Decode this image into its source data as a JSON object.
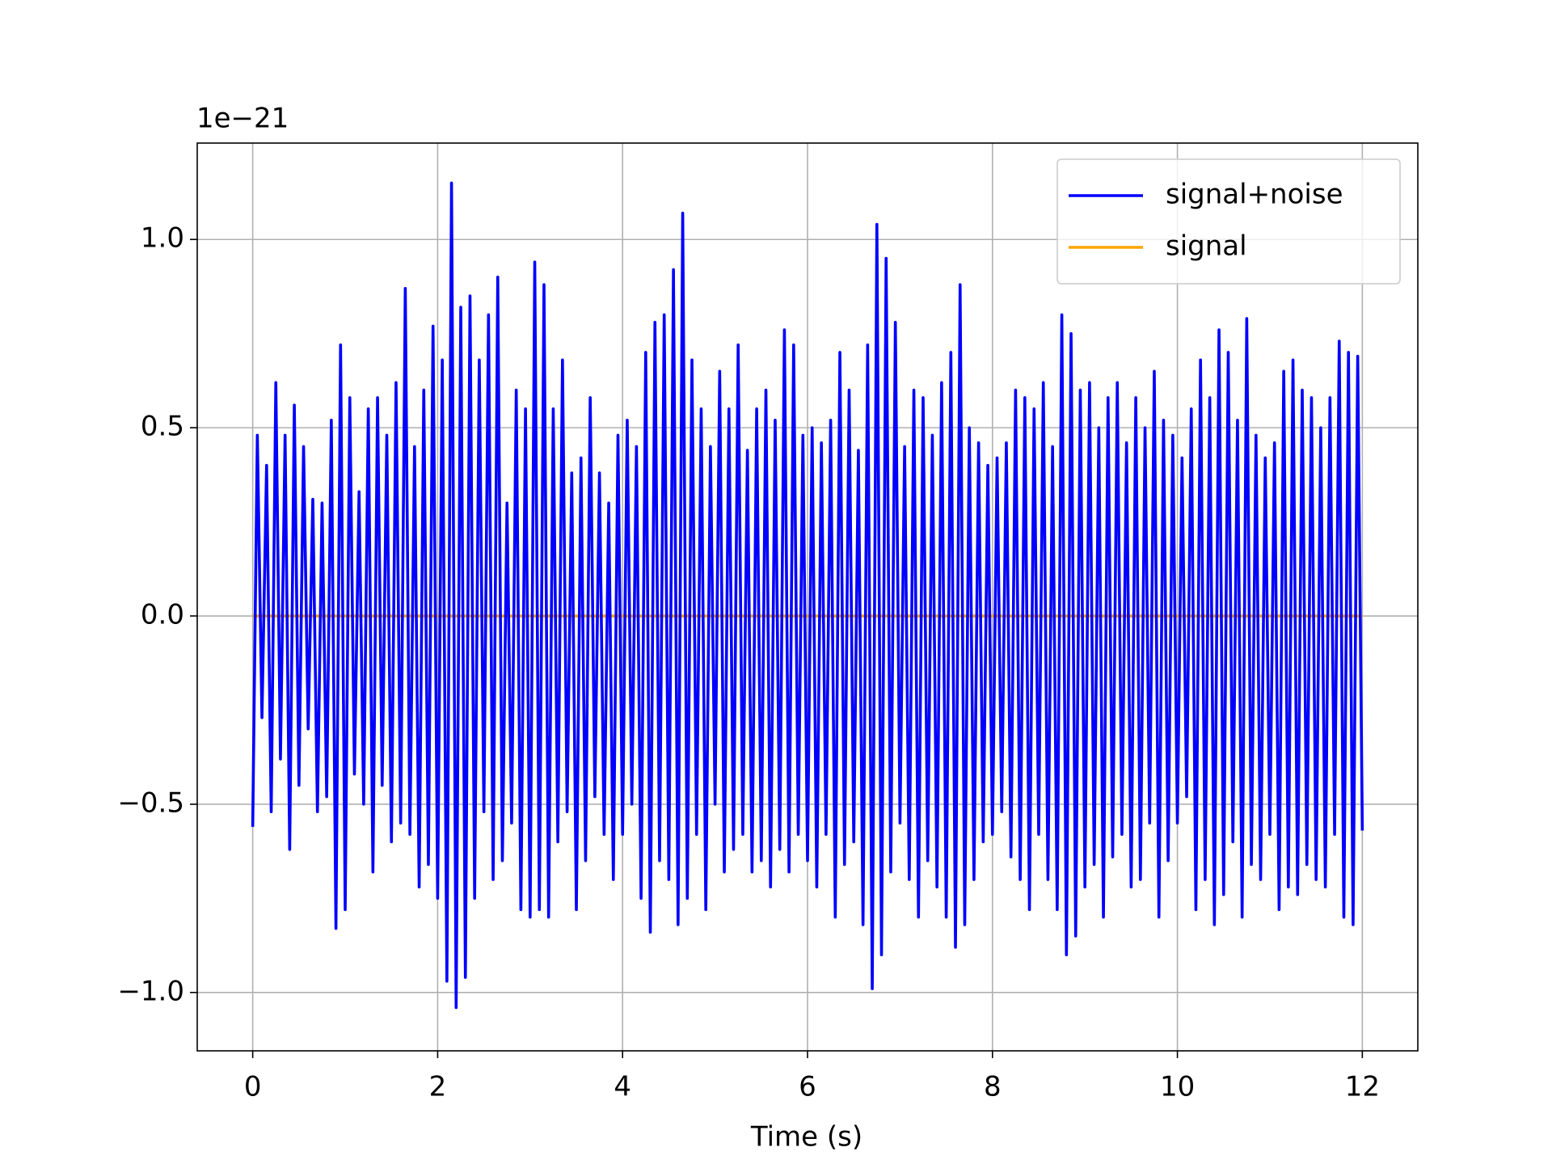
{
  "chart_data": {
    "type": "line",
    "x_label": "Time (s)",
    "y_offset_label": "1e−21",
    "x": [
      0,
      0.05,
      0.1,
      0.15,
      0.2,
      0.25,
      0.3,
      0.35,
      0.4,
      0.45,
      0.5,
      0.55,
      0.6,
      0.65,
      0.7,
      0.75,
      0.8,
      0.85,
      0.9,
      0.95,
      1,
      1.05,
      1.1,
      1.15,
      1.2,
      1.25,
      1.3,
      1.35,
      1.4,
      1.45,
      1.5,
      1.55,
      1.6,
      1.65,
      1.7,
      1.75,
      1.8,
      1.85,
      1.9,
      1.95,
      2,
      2.05,
      2.1,
      2.15,
      2.2,
      2.25,
      2.3,
      2.35,
      2.4,
      2.45,
      2.5,
      2.55,
      2.6,
      2.65,
      2.7,
      2.75,
      2.8,
      2.85,
      2.9,
      2.95,
      3,
      3.05,
      3.1,
      3.15,
      3.2,
      3.25,
      3.3,
      3.35,
      3.4,
      3.45,
      3.5,
      3.55,
      3.6,
      3.65,
      3.7,
      3.75,
      3.8,
      3.85,
      3.9,
      3.95,
      4,
      4.05,
      4.1,
      4.15,
      4.2,
      4.25,
      4.3,
      4.35,
      4.4,
      4.45,
      4.5,
      4.55,
      4.6,
      4.65,
      4.7,
      4.75,
      4.8,
      4.85,
      4.9,
      4.95,
      5,
      5.05,
      5.1,
      5.15,
      5.2,
      5.25,
      5.3,
      5.35,
      5.4,
      5.45,
      5.5,
      5.55,
      5.6,
      5.65,
      5.7,
      5.75,
      5.8,
      5.85,
      5.9,
      5.95,
      6,
      6.05,
      6.1,
      6.15,
      6.2,
      6.25,
      6.3,
      6.35,
      6.4,
      6.45,
      6.5,
      6.55,
      6.6,
      6.65,
      6.7,
      6.75,
      6.8,
      6.85,
      6.9,
      6.95,
      7,
      7.05,
      7.1,
      7.15,
      7.2,
      7.25,
      7.3,
      7.35,
      7.4,
      7.45,
      7.5,
      7.55,
      7.6,
      7.65,
      7.7,
      7.75,
      7.8,
      7.85,
      7.9,
      7.95,
      8,
      8.05,
      8.1,
      8.15,
      8.2,
      8.25,
      8.3,
      8.35,
      8.4,
      8.45,
      8.5,
      8.55,
      8.6,
      8.65,
      8.7,
      8.75,
      8.8,
      8.85,
      8.9,
      8.95,
      9,
      9.05,
      9.1,
      9.15,
      9.2,
      9.25,
      9.3,
      9.35,
      9.4,
      9.45,
      9.5,
      9.55,
      9.6,
      9.65,
      9.7,
      9.75,
      9.8,
      9.85,
      9.9,
      9.95,
      10,
      10.05,
      10.1,
      10.15,
      10.2,
      10.25,
      10.3,
      10.35,
      10.4,
      10.45,
      10.5,
      10.55,
      10.6,
      10.65,
      10.7,
      10.75,
      10.8,
      10.85,
      10.9,
      10.95,
      11,
      11.05,
      11.1,
      11.15,
      11.2,
      11.25,
      11.3,
      11.35,
      11.4,
      11.45,
      11.5,
      11.55,
      11.6,
      11.65,
      11.7,
      11.75,
      11.8,
      11.85,
      11.9,
      11.95,
      12
    ],
    "series": [
      {
        "name": "signal+noise",
        "color": "#0000ff",
        "values": [
          -0.56,
          0.48,
          -0.27,
          0.4,
          -0.52,
          0.62,
          -0.38,
          0.48,
          -0.62,
          0.56,
          -0.45,
          0.45,
          -0.3,
          0.31,
          -0.52,
          0.3,
          -0.48,
          0.52,
          -0.83,
          0.72,
          -0.78,
          0.58,
          -0.42,
          0.33,
          -0.5,
          0.55,
          -0.68,
          0.58,
          -0.45,
          0.48,
          -0.6,
          0.62,
          -0.55,
          0.87,
          -0.58,
          0.45,
          -0.72,
          0.6,
          -0.66,
          0.77,
          -0.75,
          0.68,
          -0.97,
          1.15,
          -1.04,
          0.82,
          -0.96,
          0.85,
          -0.75,
          0.68,
          -0.52,
          0.8,
          -0.7,
          0.9,
          -0.65,
          0.3,
          -0.55,
          0.6,
          -0.78,
          0.55,
          -0.8,
          0.94,
          -0.78,
          0.88,
          -0.8,
          0.55,
          -0.6,
          0.68,
          -0.52,
          0.38,
          -0.78,
          0.42,
          -0.65,
          0.58,
          -0.48,
          0.38,
          -0.58,
          0.3,
          -0.7,
          0.48,
          -0.58,
          0.52,
          -0.5,
          0.45,
          -0.75,
          0.7,
          -0.84,
          0.78,
          -0.65,
          0.8,
          -0.7,
          0.92,
          -0.82,
          1.07,
          -0.75,
          0.68,
          -0.58,
          0.55,
          -0.78,
          0.45,
          -0.5,
          0.65,
          -0.68,
          0.55,
          -0.62,
          0.72,
          -0.58,
          0.44,
          -0.68,
          0.55,
          -0.65,
          0.6,
          -0.72,
          0.52,
          -0.62,
          0.76,
          -0.68,
          0.72,
          -0.58,
          0.48,
          -0.65,
          0.5,
          -0.72,
          0.46,
          -0.58,
          0.52,
          -0.8,
          0.7,
          -0.66,
          0.6,
          -0.6,
          0.44,
          -0.82,
          0.72,
          -0.99,
          1.04,
          -0.9,
          0.95,
          -0.68,
          0.78,
          -0.55,
          0.45,
          -0.7,
          0.6,
          -0.8,
          0.58,
          -0.65,
          0.48,
          -0.72,
          0.62,
          -0.8,
          0.7,
          -0.88,
          0.88,
          -0.82,
          0.5,
          -0.7,
          0.46,
          -0.6,
          0.4,
          -0.58,
          0.42,
          -0.52,
          0.46,
          -0.64,
          0.6,
          -0.7,
          0.58,
          -0.78,
          0.55,
          -0.58,
          0.62,
          -0.7,
          0.45,
          -0.78,
          0.8,
          -0.9,
          0.75,
          -0.85,
          0.6,
          -0.72,
          0.62,
          -0.66,
          0.5,
          -0.8,
          0.58,
          -0.64,
          0.62,
          -0.58,
          0.46,
          -0.72,
          0.58,
          -0.7,
          0.5,
          -0.55,
          0.65,
          -0.8,
          0.52,
          -0.65,
          0.48,
          -0.55,
          0.42,
          -0.48,
          0.55,
          -0.78,
          0.68,
          -0.7,
          0.58,
          -0.82,
          0.76,
          -0.74,
          0.7,
          -0.6,
          0.52,
          -0.8,
          0.79,
          -0.66,
          0.48,
          -0.7,
          0.42,
          -0.58,
          0.46,
          -0.78,
          0.65,
          -0.72,
          0.68,
          -0.74,
          0.6,
          -0.66,
          0.58,
          -0.7,
          0.5,
          -0.72,
          0.58,
          -0.58,
          0.73,
          -0.8,
          0.7,
          -0.82,
          0.69,
          -0.57
        ]
      },
      {
        "name": "signal",
        "color": "#ffa500",
        "x": [
          0,
          12
        ],
        "values": [
          0,
          0
        ]
      }
    ],
    "xlim": [
      -0.6,
      12.6
    ],
    "ylim": [
      -1.155,
      1.256
    ],
    "xticks": [
      0,
      2,
      4,
      6,
      8,
      10,
      12
    ],
    "yticks": [
      {
        "value": -1.0,
        "label": "−1.0"
      },
      {
        "value": -0.5,
        "label": "−0.5"
      },
      {
        "value": 0.0,
        "label": "0.0"
      },
      {
        "value": 0.5,
        "label": "0.5"
      },
      {
        "value": 1.0,
        "label": "1.0"
      }
    ],
    "grid": true,
    "legend": "upper right"
  }
}
